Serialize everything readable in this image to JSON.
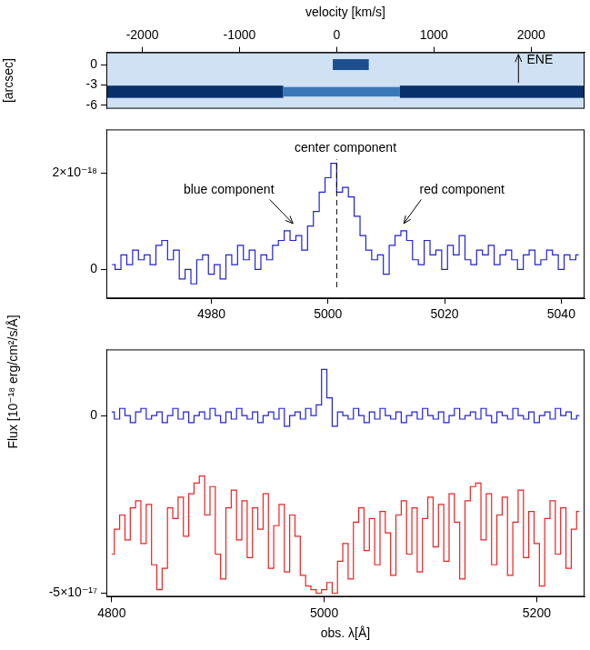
{
  "chart_data": [
    {
      "type": "image",
      "xlabel": "velocity [km/s]",
      "ylabel": "[arcsec]",
      "xlim": [
        -2370,
        2550
      ],
      "xticks": [
        -2000,
        -1000,
        0,
        1000,
        2000
      ],
      "ylim": [
        -6.5,
        1.8
      ],
      "yticks": [
        0,
        -3,
        -6
      ],
      "features": [
        {
          "x": [
            -2370,
            -550
          ],
          "y": [
            -4.9,
            -3.1
          ],
          "color": "#08306b"
        },
        {
          "x": [
            -550,
            650
          ],
          "y": [
            -4.7,
            -3.3
          ],
          "color": "#3a78b8"
        },
        {
          "x": [
            650,
            2550
          ],
          "y": [
            -4.9,
            -3.1
          ],
          "color": "#08306b"
        },
        {
          "x": [
            -40,
            330
          ],
          "y": [
            -0.8,
            0.8
          ],
          "color": "#1c4f8c"
        }
      ],
      "annotations": [
        {
          "text": "ENE",
          "x": 2090,
          "y": 0.6,
          "arrow": [
            [
              1870,
              -2.7
            ],
            [
              1870,
              1.5
            ]
          ]
        }
      ]
    },
    {
      "type": "line",
      "ylabel": "Flux [10⁻¹⁸ erg/cm²/s/Å]",
      "xlim": [
        4962,
        5044
      ],
      "xticks": [
        4980,
        5000,
        5020,
        5040
      ],
      "ylim": [
        -6e-19,
        2.9e-18
      ],
      "yticks": [
        0,
        {
          "value": 2e-18,
          "label": "2×10⁻¹⁸"
        }
      ],
      "x": [
        4963,
        4964,
        4965,
        4966,
        4967,
        4968,
        4969,
        4970,
        4971,
        4972,
        4973,
        4974,
        4975,
        4976,
        4977,
        4978,
        4979,
        4980,
        4981,
        4982,
        4983,
        4984,
        4985,
        4986,
        4987,
        4988,
        4989,
        4990,
        4991,
        4992,
        4993,
        4994,
        4995,
        4996,
        4997,
        4998,
        4999,
        5000,
        5001,
        5002,
        5003,
        5004,
        5005,
        5006,
        5007,
        5008,
        5009,
        5010,
        5011,
        5012,
        5013,
        5014,
        5015,
        5016,
        5017,
        5018,
        5019,
        5020,
        5021,
        5022,
        5023,
        5024,
        5025,
        5026,
        5027,
        5028,
        5029,
        5030,
        5031,
        5032,
        5033,
        5034,
        5035,
        5036,
        5037,
        5038,
        5039,
        5040,
        5041,
        5042,
        5043
      ],
      "series": [
        {
          "color": "#1f1fe0",
          "line_style": "steps",
          "values": [
            1e-19,
            0,
            3e-19,
            1e-19,
            4e-19,
            2e-19,
            3e-19,
            1e-19,
            5e-19,
            6e-19,
            2e-19,
            4e-19,
            -2e-19,
            0,
            -3e-19,
            2e-19,
            3e-19,
            -1e-19,
            1e-19,
            -2e-19,
            3e-19,
            1e-19,
            5e-19,
            2e-19,
            4e-19,
            0,
            3e-19,
            2e-19,
            5e-19,
            6e-19,
            8e-19,
            6e-19,
            7e-19,
            4e-19,
            9e-19,
            1.2e-18,
            1.6e-18,
            1.9e-18,
            2.2e-18,
            1.6e-18,
            1.7e-18,
            1.5e-18,
            1.1e-18,
            7e-19,
            4e-19,
            2e-19,
            3e-19,
            -1e-19,
            5e-19,
            7e-19,
            8e-19,
            6e-19,
            2e-19,
            1e-19,
            6e-19,
            3e-19,
            4e-19,
            0,
            5e-19,
            3e-19,
            7e-19,
            2e-19,
            1e-19,
            4e-19,
            3e-19,
            5e-19,
            1e-19,
            3e-19,
            4e-19,
            2e-19,
            0,
            3e-19,
            4e-19,
            1e-19,
            2e-19,
            4e-19,
            3e-19,
            0,
            3e-19,
            2e-19,
            3e-19
          ]
        }
      ],
      "annotations": [
        {
          "text": "center component",
          "x": 5003,
          "y": 2.5e-18
        },
        {
          "text": "blue component",
          "x": 4983,
          "y": 1.65e-18,
          "arrow": [
            [
              4990,
              1.45e-18
            ],
            [
              4994,
              9.5e-19
            ]
          ]
        },
        {
          "text": "red component",
          "x": 5023,
          "y": 1.65e-18,
          "arrow": [
            [
              5016,
              1.45e-18
            ],
            [
              5013,
              9.5e-19
            ]
          ]
        }
      ],
      "vline": {
        "x": 5001.5,
        "y": [
          -3.7e-19,
          2.28e-18
        ],
        "line_style": "dashed"
      }
    },
    {
      "type": "line",
      "xlabel": "obs. λ[Å]",
      "xlim": [
        4795,
        5245
      ],
      "xticks": [
        4800,
        5000,
        5200
      ],
      "ylim": [
        -5.1e-17,
        1.86e-17
      ],
      "yticks": [
        0,
        {
          "value": -5e-17,
          "label": "-5×10⁻¹⁷"
        }
      ],
      "x": [
        4800,
        4805,
        4810,
        4815,
        4820,
        4825,
        4830,
        4835,
        4840,
        4845,
        4850,
        4855,
        4860,
        4865,
        4870,
        4875,
        4880,
        4885,
        4890,
        4895,
        4900,
        4905,
        4910,
        4915,
        4920,
        4925,
        4930,
        4935,
        4940,
        4945,
        4950,
        4955,
        4960,
        4965,
        4970,
        4975,
        4980,
        4985,
        4990,
        4995,
        5000,
        5005,
        5010,
        5015,
        5020,
        5025,
        5030,
        5035,
        5040,
        5045,
        5050,
        5055,
        5060,
        5065,
        5070,
        5075,
        5080,
        5085,
        5090,
        5095,
        5100,
        5105,
        5110,
        5115,
        5120,
        5125,
        5130,
        5135,
        5140,
        5145,
        5150,
        5155,
        5160,
        5165,
        5170,
        5175,
        5180,
        5185,
        5190,
        5195,
        5200,
        5205,
        5210,
        5215,
        5220,
        5225,
        5230,
        5235,
        5240
      ],
      "series": [
        {
          "color": "#1f1fe0",
          "line_style": "steps",
          "values": [
            1e-18,
            -1e-18,
            2e-18,
            0,
            -2e-18,
            1e-18,
            2e-18,
            -1e-18,
            0,
            1e-18,
            -2e-18,
            0,
            2e-18,
            -1e-18,
            1e-18,
            -2e-18,
            0,
            1e-18,
            -1e-18,
            2e-18,
            0,
            -2e-18,
            1e-18,
            -1e-18,
            2e-18,
            0,
            -1e-18,
            1e-18,
            -2e-18,
            0,
            1e-18,
            -1e-18,
            2e-18,
            -3e-18,
            0,
            1e-18,
            -1e-18,
            2e-18,
            0,
            3e-18,
            1.3e-17,
            5e-18,
            -3e-18,
            1e-18,
            0,
            -1e-18,
            2e-18,
            0,
            -2e-18,
            1e-18,
            -1e-18,
            2e-18,
            0,
            -1e-18,
            1e-18,
            -2e-18,
            0,
            1e-18,
            -1e-18,
            2e-18,
            0,
            -1e-18,
            1e-18,
            -2e-18,
            0,
            2e-18,
            -1e-18,
            0,
            1e-18,
            -1e-18,
            2e-18,
            0,
            -2e-18,
            1e-18,
            0,
            -1e-18,
            2e-18,
            0,
            -1e-18,
            1e-18,
            -2e-18,
            0,
            1e-18,
            -1e-18,
            2e-18,
            0,
            1e-18,
            -1e-18,
            0
          ]
        },
        {
          "color": "#ee2020",
          "line_style": "steps",
          "values": [
            -3.9e-17,
            -3.2e-17,
            -2.8e-17,
            -3.5e-17,
            -2.6e-17,
            -2.4e-17,
            -3.6e-17,
            -2.5e-17,
            -4.2e-17,
            -4.9e-17,
            -4.3e-17,
            -2.6e-17,
            -2.9e-17,
            -2.3e-17,
            -3.4e-17,
            -2.2e-17,
            -1.9e-17,
            -1.7e-17,
            -2.8e-17,
            -2e-17,
            -3.9e-17,
            -4.6e-17,
            -2.6e-17,
            -2.1e-17,
            -3.5e-17,
            -2.4e-17,
            -4e-17,
            -2.6e-17,
            -3.2e-17,
            -2.2e-17,
            -4.3e-17,
            -3.1e-17,
            -2.5e-17,
            -4.4e-17,
            -2.8e-17,
            -3.4e-17,
            -4.5e-17,
            -4.8e-17,
            -4.9e-17,
            -5e-17,
            -4.9e-17,
            -4.7e-17,
            -5e-17,
            -4.1e-17,
            -3.6e-17,
            -4.6e-17,
            -3e-17,
            -2.6e-17,
            -3.8e-17,
            -2.9e-17,
            -4.2e-17,
            -2.7e-17,
            -3.3e-17,
            -4.5e-17,
            -2.8e-17,
            -2.4e-17,
            -3.9e-17,
            -2.6e-17,
            -4.4e-17,
            -2.9e-17,
            -2.3e-17,
            -3.7e-17,
            -2.5e-17,
            -4.1e-17,
            -2.2e-17,
            -3e-17,
            -4.6e-17,
            -2.4e-17,
            -2e-17,
            -1.9e-17,
            -3.5e-17,
            -2.2e-17,
            -4.2e-17,
            -2.8e-17,
            -2.3e-17,
            -4.5e-17,
            -3e-17,
            -2.1e-17,
            -4e-17,
            -2.7e-17,
            -3.6e-17,
            -4.8e-17,
            -2.9e-17,
            -2.4e-17,
            -3.9e-17,
            -2.6e-17,
            -4.3e-17,
            -3.2e-17,
            -2.7e-17
          ]
        }
      ]
    }
  ]
}
